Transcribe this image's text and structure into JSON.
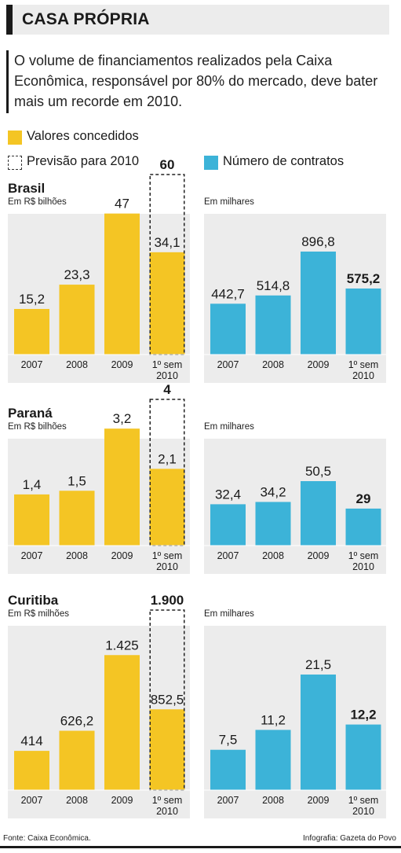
{
  "header": {
    "title": "CASA PRÓPRIA"
  },
  "intro": "O volume de financiamentos realizados pela Caixa Econômica, responsável por 80% do mercado, deve bater mais um recorde em 2010.",
  "legend": {
    "values": "Valores concedidos",
    "forecast": "Previsão para 2010",
    "contracts": "Número de contratos"
  },
  "colors": {
    "yellow": "#f4c524",
    "blue": "#3cb3d8",
    "panel": "#ececec"
  },
  "footer": {
    "source": "Fonte: Caixa Econômica.",
    "credit": "Infografia: Gazeta do Povo"
  },
  "chart_data": [
    {
      "type": "bar",
      "region": "Brasil",
      "unit": "Em R$ bilhões",
      "categories": [
        "2007",
        "2008",
        "2009",
        "1º sem\n2010"
      ],
      "values": [
        15.2,
        23.3,
        47,
        34.1
      ],
      "labels": [
        "15,2",
        "23,3",
        "47",
        "34,1"
      ],
      "forecast": {
        "category": "1º sem\n2010",
        "value": 60,
        "label": "60"
      },
      "ylim": [
        0,
        60
      ]
    },
    {
      "type": "bar",
      "region": "Brasil",
      "unit": "Em milhares",
      "categories": [
        "2007",
        "2008",
        "2009",
        "1º sem\n2010"
      ],
      "values": [
        442.7,
        514.8,
        896.8,
        575.2
      ],
      "labels": [
        "442,7",
        "514,8",
        "896,8",
        "575,2"
      ],
      "ylim": [
        0,
        896.8
      ]
    },
    {
      "type": "bar",
      "region": "Paraná",
      "unit": "Em R$ bilhões",
      "categories": [
        "2007",
        "2008",
        "2009",
        "1º sem\n2010"
      ],
      "values": [
        1.4,
        1.5,
        3.2,
        2.1
      ],
      "labels": [
        "1,4",
        "1,5",
        "3,2",
        "2,1"
      ],
      "forecast": {
        "category": "1º sem\n2010",
        "value": 4,
        "label": "4"
      },
      "ylim": [
        0,
        4
      ]
    },
    {
      "type": "bar",
      "region": "Paraná",
      "unit": "Em milhares",
      "categories": [
        "2007",
        "2008",
        "2009",
        "1º sem\n2010"
      ],
      "values": [
        32.4,
        34.2,
        50.5,
        29
      ],
      "labels": [
        "32,4",
        "34,2",
        "50,5",
        "29"
      ],
      "ylim": [
        0,
        50.5
      ]
    },
    {
      "type": "bar",
      "region": "Curitiba",
      "unit": "Em R$ milhões",
      "categories": [
        "2007",
        "2008",
        "2009",
        "1º sem\n2010"
      ],
      "values": [
        414,
        626.2,
        1425,
        852.5
      ],
      "labels": [
        "414",
        "626,2",
        "1.425",
        "852,5"
      ],
      "forecast": {
        "category": "1º sem\n2010",
        "value": 1900,
        "label": "1.900"
      },
      "ylim": [
        0,
        1900
      ]
    },
    {
      "type": "bar",
      "region": "Curitiba",
      "unit": "Em milhares",
      "categories": [
        "2007",
        "2008",
        "2009",
        "1º sem\n2010"
      ],
      "values": [
        7.5,
        11.2,
        21.5,
        12.2
      ],
      "labels": [
        "7,5",
        "11,2",
        "21,5",
        "12,2"
      ],
      "ylim": [
        0,
        21.5
      ]
    }
  ]
}
